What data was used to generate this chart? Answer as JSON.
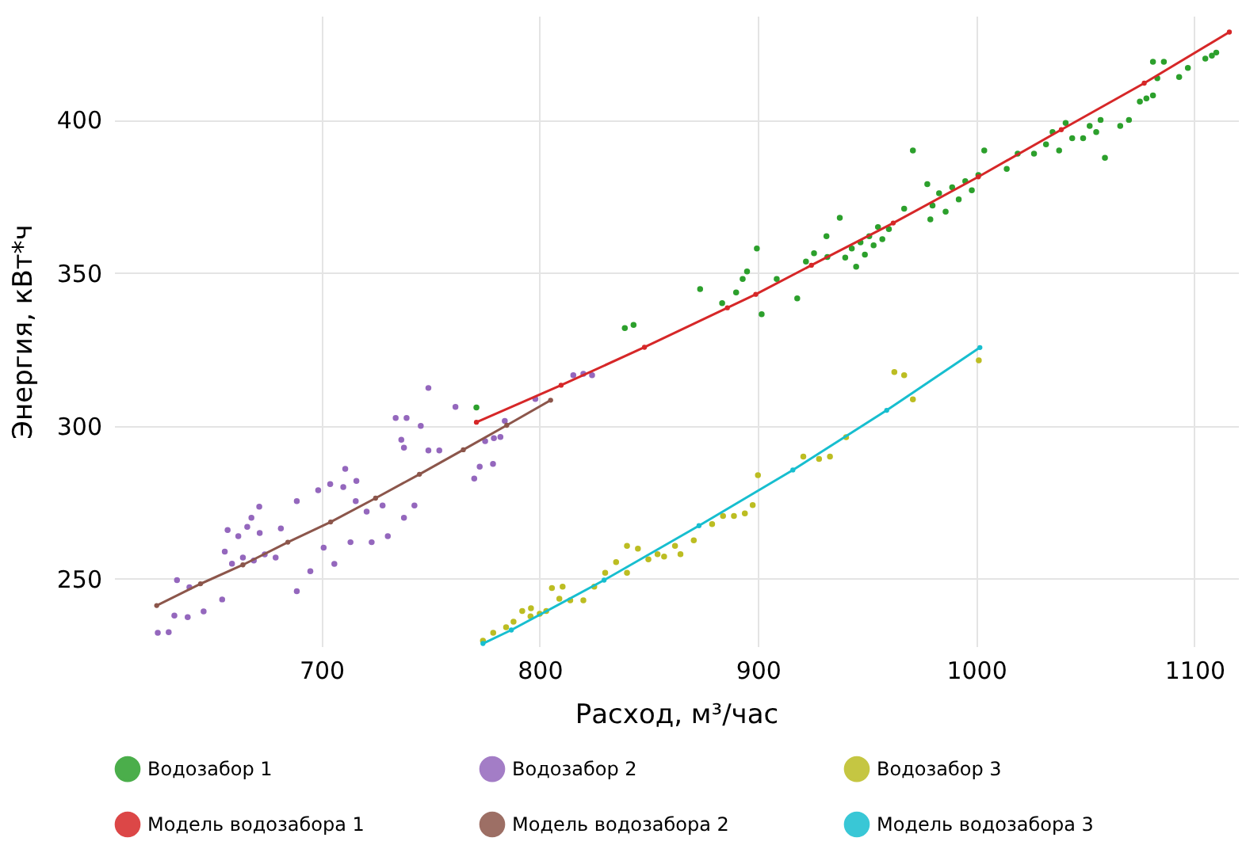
{
  "chart_data": {
    "type": "scatter",
    "xlabel": "Расход, м³/час",
    "ylabel": "Энергия, кВт*ч",
    "xlim": [
      605,
      1120
    ],
    "ylim": [
      228,
      434
    ],
    "xticks": [
      700,
      800,
      900,
      1000,
      1100
    ],
    "yticks": [
      250,
      300,
      350,
      400
    ],
    "grid": true,
    "legend": "bottom",
    "marker": "circle",
    "series": [
      {
        "name": "Водозабор 1",
        "color": "#2ca02c",
        "x": [
          771,
          839,
          843,
          873.5,
          883.6,
          890,
          893,
          895,
          899.5,
          901.7,
          908.6,
          918,
          922,
          925.7,
          931.4,
          931.8,
          937.5,
          940,
          943,
          945,
          947,
          949,
          951,
          953,
          955,
          957,
          960,
          967,
          971,
          977.6,
          979,
          980,
          983,
          986,
          989,
          992,
          995,
          998,
          1001,
          1003.7,
          1014,
          1019,
          1026.5,
          1032,
          1035,
          1038,
          1041,
          1044,
          1049,
          1052,
          1055,
          1057,
          1059,
          1066,
          1070,
          1075,
          1078,
          1081,
          1081,
          1083,
          1086,
          1093,
          1097,
          1105,
          1108,
          1110
        ],
        "values": [
          306,
          332,
          333,
          344.7,
          340.1,
          343.6,
          348,
          350.5,
          358,
          336.5,
          348,
          341.7,
          353.7,
          356.4,
          362,
          355.2,
          368,
          355,
          358,
          352,
          360,
          356,
          362,
          359,
          365,
          361,
          364.3,
          371,
          390,
          379,
          367.5,
          372,
          376,
          370,
          378,
          374,
          380,
          377,
          382,
          390,
          384,
          389,
          389,
          392,
          396,
          390,
          399,
          394,
          394,
          398,
          396,
          400,
          387.6,
          398,
          400,
          406,
          407,
          408,
          419,
          413.6,
          419,
          414,
          417,
          420,
          421,
          422
        ]
      },
      {
        "name": "Водозабор 2",
        "color": "#9467bd",
        "x": [
          625,
          630,
          632.6,
          633.8,
          638.7,
          639.5,
          646,
          654.5,
          655.7,
          657,
          661.9,
          666,
          671.7,
          667.9,
          671.5,
          659,
          664,
          669,
          674,
          679,
          681.4,
          688.7,
          688.7,
          694.9,
          701,
          705.9,
          698.5,
          704,
          710,
          716,
          710.9,
          715.7,
          713.3,
          720.7,
          728,
          723,
          730.4,
          737.8,
          742.6,
          737.8,
          736.6,
          734,
          739,
          745.5,
          749,
          754,
          749,
          761.4,
          770,
          772.5,
          778.6,
          775,
          779,
          782,
          784,
          798,
          815.4,
          820,
          824
        ],
        "values": [
          232.4,
          232.6,
          238,
          249.6,
          237.5,
          247.3,
          239.4,
          243.3,
          258.9,
          266,
          264,
          267,
          265,
          270,
          273.6,
          255,
          257,
          256,
          258,
          257,
          266.5,
          275.4,
          246,
          252.5,
          260.2,
          254.9,
          279,
          281,
          280,
          282,
          286,
          275.4,
          262,
          272,
          274,
          262,
          264,
          270,
          274,
          292.9,
          295.5,
          302.6,
          302.6,
          300,
          292,
          292,
          312.4,
          306.2,
          282.8,
          286.7,
          287.6,
          295,
          296,
          296.4,
          301.6,
          308.8,
          316.6,
          317,
          316.6
        ]
      },
      {
        "name": "Водозабор 3",
        "color": "#bcbd22",
        "x": [
          774,
          778.7,
          784.6,
          788,
          792,
          796,
          800,
          795.8,
          803,
          809,
          814,
          820,
          805.6,
          810.5,
          825,
          830,
          835,
          840,
          845,
          840,
          849.8,
          854,
          857,
          862,
          864.5,
          870.6,
          879,
          884,
          889,
          894,
          897.6,
          900,
          920.8,
          928,
          933,
          940.4,
          962.5,
          967,
          971,
          1001.2
        ],
        "values": [
          229.8,
          232.4,
          234.2,
          236,
          239.5,
          240.4,
          238.6,
          237.8,
          239.5,
          243.5,
          243,
          243,
          247,
          247.5,
          247.5,
          252,
          255.5,
          260.8,
          259.9,
          252,
          256.4,
          258.1,
          257.3,
          260.8,
          258.1,
          262.6,
          267.9,
          270.6,
          270.6,
          271.4,
          274.1,
          283.9,
          290,
          289.2,
          290,
          296.3,
          317.6,
          316.6,
          308.7,
          321.4
        ]
      },
      {
        "name": "Модель водозабора 1",
        "color": "#d62728",
        "type": "line",
        "x": [
          771,
          809.8,
          848,
          886,
          899,
          924.5,
          962,
          1001,
          1039,
          1077,
          1116
        ],
        "values": [
          301.2,
          313.3,
          325.7,
          338.6,
          343,
          352.5,
          366.3,
          381.4,
          396.8,
          412,
          428.7
        ]
      },
      {
        "name": "Модель водозабора 2",
        "color": "#8c564b",
        "type": "line",
        "x": [
          624.5,
          644.6,
          664,
          684.6,
          704.2,
          724.8,
          744.9,
          765,
          784.9,
          805
        ],
        "values": [
          241.3,
          248.4,
          254.6,
          262,
          268.6,
          276.4,
          284.2,
          292.2,
          300.2,
          308.4
        ]
      },
      {
        "name": "Модель водозабора 3",
        "color": "#17becf",
        "type": "line",
        "x": [
          774,
          787,
          829.5,
          873,
          916,
          959,
          1001.7
        ],
        "values": [
          228.9,
          233.3,
          249.6,
          267.4,
          285.6,
          305.1,
          325.6
        ]
      }
    ]
  }
}
